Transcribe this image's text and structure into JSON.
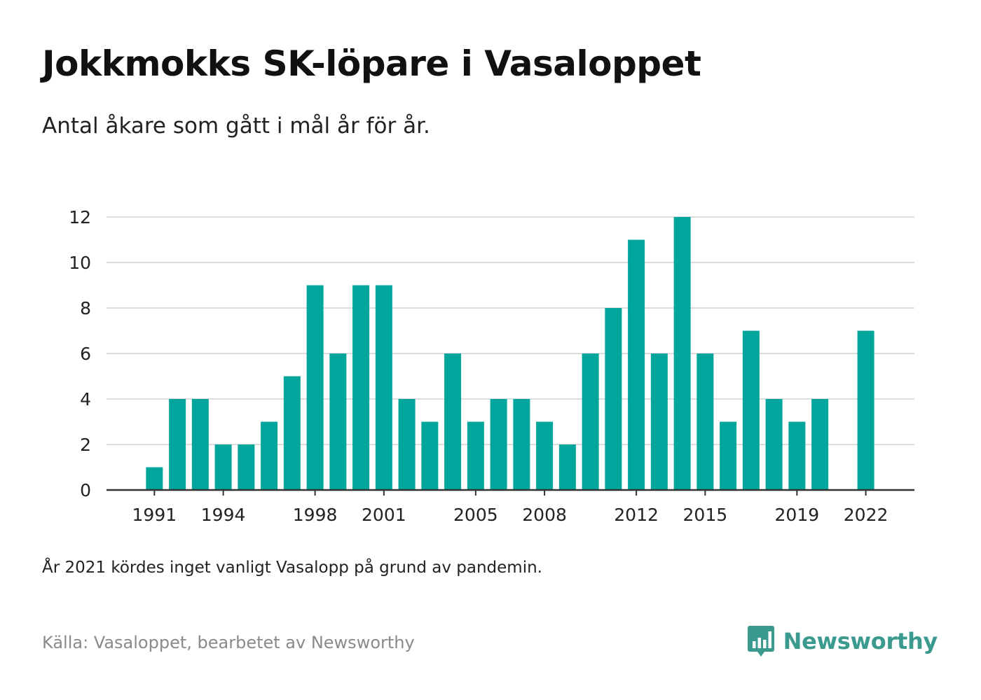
{
  "header": {
    "title": "Jokkmokks SK-löpare i Vasaloppet",
    "subtitle": "Antal åkare som gått i mål år för år."
  },
  "footer": {
    "note": "År 2021 kördes inget vanligt Vasalopp på grund av pandemin.",
    "source": "Källa: Vasaloppet, bearbetet av Newsworthy",
    "logo_text": "Newsworthy",
    "logo_icon": "bar-chart-speech-bubble-icon"
  },
  "colors": {
    "bar": "#00a69c",
    "grid": "#dddddd",
    "axis": "#333333",
    "logo": "#3a9a8e"
  },
  "chart_data": {
    "type": "bar",
    "title": "Jokkmokks SK-löpare i Vasaloppet",
    "subtitle": "Antal åkare som gått i mål år för år.",
    "xlabel": "",
    "ylabel": "",
    "categories": [
      1990,
      1991,
      1992,
      1993,
      1994,
      1995,
      1996,
      1997,
      1998,
      1999,
      2000,
      2001,
      2002,
      2003,
      2004,
      2005,
      2006,
      2007,
      2008,
      2009,
      2010,
      2011,
      2012,
      2013,
      2014,
      2015,
      2016,
      2017,
      2018,
      2019,
      2020,
      2021,
      2022
    ],
    "values": [
      0,
      1,
      4,
      4,
      2,
      2,
      3,
      5,
      9,
      6,
      9,
      9,
      4,
      3,
      6,
      3,
      4,
      4,
      3,
      2,
      6,
      8,
      11,
      6,
      12,
      6,
      3,
      7,
      4,
      3,
      4,
      null,
      7
    ],
    "x_ticks": [
      1991,
      1994,
      1998,
      2001,
      2005,
      2008,
      2012,
      2015,
      2019,
      2022
    ],
    "y_ticks": [
      0,
      2,
      4,
      6,
      8,
      10,
      12
    ],
    "ylim": [
      0,
      12
    ],
    "grid": true,
    "legend": "none"
  }
}
